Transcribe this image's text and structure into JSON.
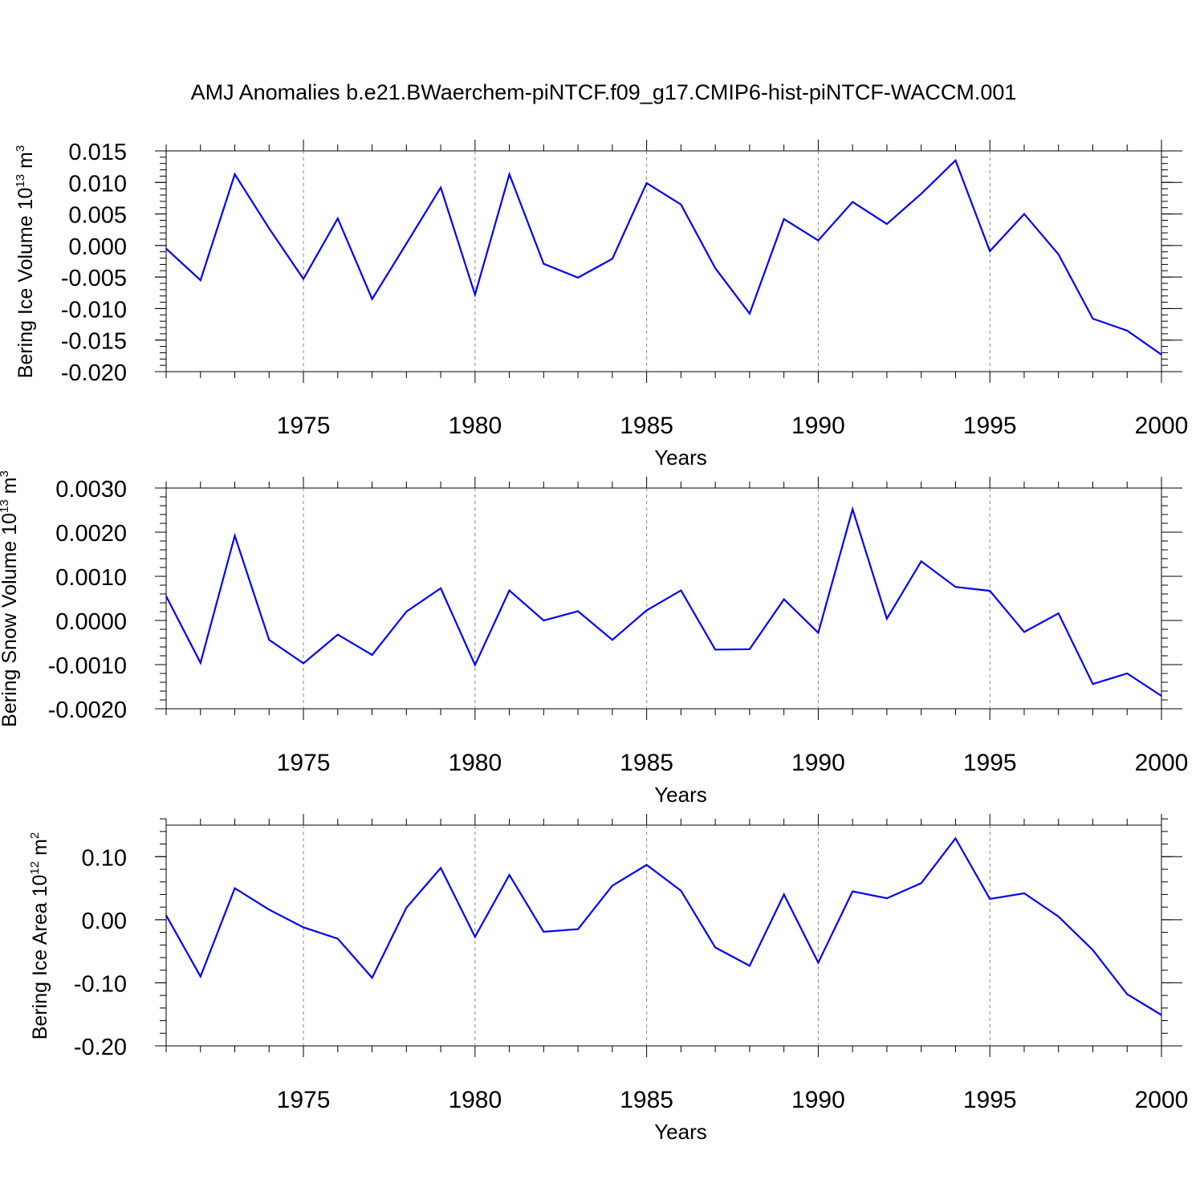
{
  "title": "AMJ Anomalies b.e21.BWaerchem-piNTCF.f09_g17.CMIP6-hist-piNTCF-WACCM.001",
  "colors": {
    "line": "#0000ff",
    "axis": "#000000",
    "grid": "#888888"
  },
  "chart_data": [
    {
      "type": "line",
      "title": "",
      "ylabel": {
        "text": "Bering Ice Volume 10",
        "exponent": "13",
        "unit": " m",
        "unit_exponent": "3"
      },
      "xlabel": "Years",
      "xlim": [
        1971,
        2000
      ],
      "ylim": [
        -0.02,
        0.015
      ],
      "yticks": [
        -0.02,
        -0.015,
        -0.01,
        -0.005,
        0.0,
        0.005,
        0.01,
        0.015
      ],
      "yticklabels": [
        "-0.020",
        "-0.015",
        "-0.010",
        "-0.005",
        "0.000",
        "0.005",
        "0.010",
        "0.015"
      ],
      "xticks": [
        1975,
        1980,
        1985,
        1990,
        1995,
        2000
      ],
      "xticklabels": [
        "1975",
        "1980",
        "1985",
        "1990",
        "1995",
        "2000"
      ],
      "grid_x": [
        1975,
        1980,
        1985,
        1990,
        1995
      ],
      "x": [
        1971,
        1972,
        1973,
        1974,
        1975,
        1976,
        1977,
        1978,
        1979,
        1980,
        1981,
        1982,
        1983,
        1984,
        1985,
        1986,
        1987,
        1988,
        1989,
        1990,
        1991,
        1992,
        1993,
        1994,
        1995,
        1996,
        1997,
        1998,
        1999,
        2000
      ],
      "series": [
        {
          "name": "Bering Ice Volume",
          "values": [
            -0.0005,
            -0.0055,
            0.0113,
            0.0027,
            -0.0053,
            0.0043,
            -0.0085,
            0.0003,
            0.0092,
            -0.0078,
            0.0113,
            -0.0029,
            -0.0051,
            -0.0021,
            0.0099,
            0.0065,
            -0.0036,
            -0.0108,
            0.0042,
            0.0008,
            0.0069,
            0.0034,
            0.0082,
            0.0135,
            -0.0009,
            0.005,
            -0.0014,
            -0.0116,
            -0.0135,
            -0.0173
          ]
        }
      ]
    },
    {
      "type": "line",
      "title": "",
      "ylabel": {
        "text": "Bering Snow Volume 10",
        "exponent": "13",
        "unit": " m",
        "unit_exponent": "3"
      },
      "xlabel": "Years",
      "xlim": [
        1971,
        2000
      ],
      "ylim": [
        -0.002,
        0.003
      ],
      "yticks": [
        -0.002,
        -0.001,
        0.0,
        0.001,
        0.002,
        0.003
      ],
      "yticklabels": [
        "-0.0020",
        "-0.0010",
        "0.0000",
        "0.0010",
        "0.0020",
        "0.0030"
      ],
      "xticks": [
        1975,
        1980,
        1985,
        1990,
        1995,
        2000
      ],
      "xticklabels": [
        "1975",
        "1980",
        "1985",
        "1990",
        "1995",
        "2000"
      ],
      "grid_x": [
        1975,
        1980,
        1985,
        1990,
        1995
      ],
      "x": [
        1971,
        1972,
        1973,
        1974,
        1975,
        1976,
        1977,
        1978,
        1979,
        1980,
        1981,
        1982,
        1983,
        1984,
        1985,
        1986,
        1987,
        1988,
        1989,
        1990,
        1991,
        1992,
        1993,
        1994,
        1995,
        1996,
        1997,
        1998,
        1999,
        2000
      ],
      "series": [
        {
          "name": "Bering Snow Volume",
          "values": [
            0.00055,
            -0.00096,
            0.00192,
            -0.00044,
            -0.00097,
            -0.00032,
            -0.00078,
            0.0002,
            0.00073,
            -0.00101,
            0.00068,
            0.0,
            0.00021,
            -0.00044,
            0.00023,
            0.00068,
            -0.00066,
            -0.00065,
            0.00048,
            -0.00028,
            0.00252,
            4e-05,
            0.00134,
            0.00076,
            0.00067,
            -0.00026,
            0.00016,
            -0.00144,
            -0.0012,
            -0.00171
          ]
        }
      ]
    },
    {
      "type": "line",
      "title": "",
      "ylabel": {
        "text": "Bering Ice Area 10",
        "exponent": "12",
        "unit": " m",
        "unit_exponent": "2"
      },
      "xlabel": "Years",
      "xlim": [
        1971,
        2000
      ],
      "ylim": [
        -0.2,
        0.15
      ],
      "yticks": [
        -0.2,
        -0.1,
        0.0,
        0.1
      ],
      "yticklabels": [
        "-0.20",
        "-0.10",
        "0.00",
        "0.10"
      ],
      "xticks": [
        1975,
        1980,
        1985,
        1990,
        1995,
        2000
      ],
      "xticklabels": [
        "1975",
        "1980",
        "1985",
        "1990",
        "1995",
        "2000"
      ],
      "grid_x": [
        1975,
        1980,
        1985,
        1990,
        1995
      ],
      "x": [
        1971,
        1972,
        1973,
        1974,
        1975,
        1976,
        1977,
        1978,
        1979,
        1980,
        1981,
        1982,
        1983,
        1984,
        1985,
        1986,
        1987,
        1988,
        1989,
        1990,
        1991,
        1992,
        1993,
        1994,
        1995,
        1996,
        1997,
        1998,
        1999,
        2000
      ],
      "series": [
        {
          "name": "Bering Ice Area",
          "values": [
            0.007,
            -0.09,
            0.05,
            0.016,
            -0.012,
            -0.03,
            -0.092,
            0.019,
            0.082,
            -0.027,
            0.071,
            -0.019,
            -0.015,
            0.054,
            0.087,
            0.046,
            -0.044,
            -0.073,
            0.04,
            -0.068,
            0.045,
            0.034,
            0.058,
            0.129,
            0.033,
            0.042,
            0.005,
            -0.048,
            -0.118,
            -0.151
          ]
        }
      ]
    }
  ]
}
